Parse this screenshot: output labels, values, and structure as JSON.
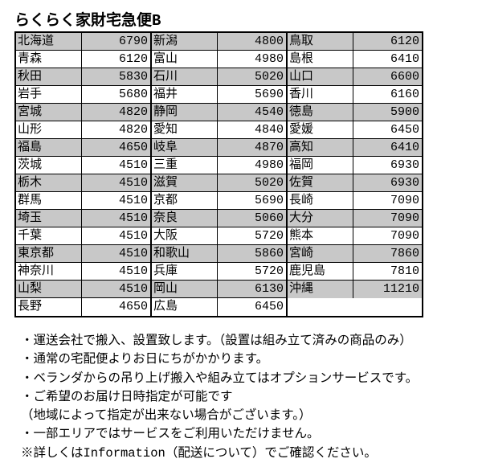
{
  "title": "らくらく家財宅急便B",
  "columns": [
    {
      "rows": [
        {
          "pref": "北海道",
          "price": 6790,
          "shaded": true
        },
        {
          "pref": "青森",
          "price": 6120,
          "shaded": false
        },
        {
          "pref": "秋田",
          "price": 5830,
          "shaded": true
        },
        {
          "pref": "岩手",
          "price": 5680,
          "shaded": false
        },
        {
          "pref": "宮城",
          "price": 4820,
          "shaded": true
        },
        {
          "pref": "山形",
          "price": 4820,
          "shaded": false
        },
        {
          "pref": "福島",
          "price": 4650,
          "shaded": true
        },
        {
          "pref": "茨城",
          "price": 4510,
          "shaded": false
        },
        {
          "pref": "栃木",
          "price": 4510,
          "shaded": true
        },
        {
          "pref": "群馬",
          "price": 4510,
          "shaded": false
        },
        {
          "pref": "埼玉",
          "price": 4510,
          "shaded": true
        },
        {
          "pref": "千葉",
          "price": 4510,
          "shaded": false
        },
        {
          "pref": "東京都",
          "price": 4510,
          "shaded": true
        },
        {
          "pref": "神奈川",
          "price": 4510,
          "shaded": false
        },
        {
          "pref": "山梨",
          "price": 4510,
          "shaded": true
        },
        {
          "pref": "長野",
          "price": 4650,
          "shaded": false
        }
      ]
    },
    {
      "rows": [
        {
          "pref": "新潟",
          "price": 4800,
          "shaded": true
        },
        {
          "pref": "富山",
          "price": 4980,
          "shaded": false
        },
        {
          "pref": "石川",
          "price": 5020,
          "shaded": true
        },
        {
          "pref": "福井",
          "price": 5690,
          "shaded": false
        },
        {
          "pref": "静岡",
          "price": 4540,
          "shaded": true
        },
        {
          "pref": "愛知",
          "price": 4840,
          "shaded": false
        },
        {
          "pref": "岐阜",
          "price": 4870,
          "shaded": true
        },
        {
          "pref": "三重",
          "price": 4980,
          "shaded": false
        },
        {
          "pref": "滋賀",
          "price": 5020,
          "shaded": true
        },
        {
          "pref": "京都",
          "price": 5690,
          "shaded": false
        },
        {
          "pref": "奈良",
          "price": 5060,
          "shaded": true
        },
        {
          "pref": "大阪",
          "price": 5720,
          "shaded": false
        },
        {
          "pref": "和歌山",
          "price": 5860,
          "shaded": true
        },
        {
          "pref": "兵庫",
          "price": 5720,
          "shaded": false
        },
        {
          "pref": "岡山",
          "price": 6130,
          "shaded": true
        },
        {
          "pref": "広島",
          "price": 6450,
          "shaded": false
        }
      ]
    },
    {
      "rows": [
        {
          "pref": "鳥取",
          "price": 6120,
          "shaded": true
        },
        {
          "pref": "島根",
          "price": 6410,
          "shaded": false
        },
        {
          "pref": "山口",
          "price": 6600,
          "shaded": true
        },
        {
          "pref": "香川",
          "price": 6160,
          "shaded": false
        },
        {
          "pref": "徳島",
          "price": 5900,
          "shaded": true
        },
        {
          "pref": "愛媛",
          "price": 6450,
          "shaded": false
        },
        {
          "pref": "高知",
          "price": 6410,
          "shaded": true
        },
        {
          "pref": "福岡",
          "price": 6930,
          "shaded": false
        },
        {
          "pref": "佐賀",
          "price": 6930,
          "shaded": true
        },
        {
          "pref": "長崎",
          "price": 7090,
          "shaded": false
        },
        {
          "pref": "大分",
          "price": 7090,
          "shaded": true
        },
        {
          "pref": "熊本",
          "price": 7090,
          "shaded": false
        },
        {
          "pref": "宮崎",
          "price": 7860,
          "shaded": true
        },
        {
          "pref": "鹿児島",
          "price": 7810,
          "shaded": false
        },
        {
          "pref": "沖縄",
          "price": 11210,
          "shaded": true
        }
      ]
    }
  ],
  "notes": [
    "・運送会社で搬入、設置致します。（設置は組み立て済みの商品のみ）",
    "・通常の宅配便よりお日にちがかかります。",
    "・ベランダからの吊り上げ搬入や組み立てはオプションサービスです。",
    "・ご希望のお届け日時指定が可能です",
    "（地域によって指定が出来ない場合がございます。）",
    "・一部エリアではサービスをご利用いただけません。",
    "※詳しくはInformation（配送について）でご確認ください。"
  ]
}
